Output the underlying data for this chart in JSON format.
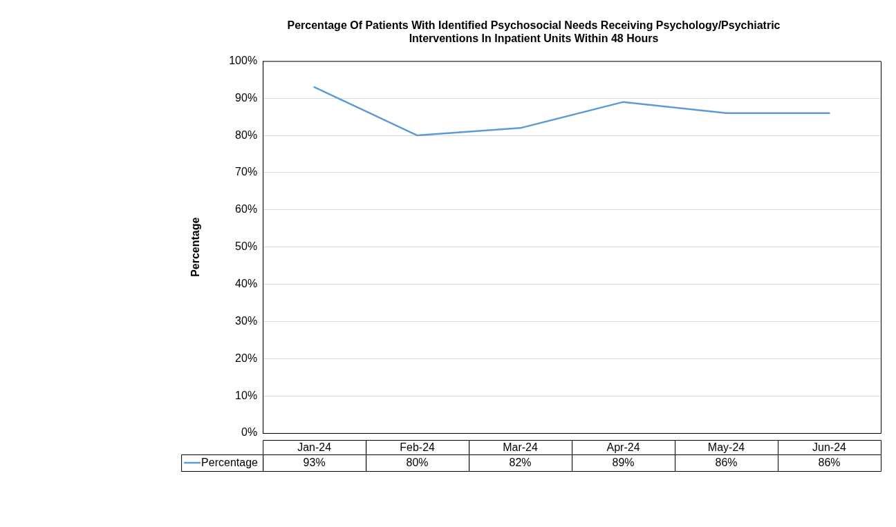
{
  "chart_data": {
    "type": "line",
    "title": "Percentage Of Patients With Identified Psychosocial Needs Receiving Psychology/Psychiatric Interventions In Inpatient Units Within 48 Hours",
    "ylabel": "Percentage",
    "categories": [
      "Jan-24",
      "Feb-24",
      "Mar-24",
      "Apr-24",
      "May-24",
      "Jun-24"
    ],
    "series": [
      {
        "name": "Percentage",
        "color": "#5b9bd5",
        "values": [
          93,
          80,
          82,
          89,
          86,
          86
        ],
        "value_labels": [
          "93%",
          "80%",
          "82%",
          "89%",
          "86%",
          "86%"
        ]
      }
    ],
    "ylim": [
      0,
      100
    ],
    "yticks": [
      {
        "value": 0,
        "label": "0%"
      },
      {
        "value": 10,
        "label": "10%"
      },
      {
        "value": 20,
        "label": "20%"
      },
      {
        "value": 30,
        "label": "30%"
      },
      {
        "value": 40,
        "label": "40%"
      },
      {
        "value": 50,
        "label": "50%"
      },
      {
        "value": 60,
        "label": "60%"
      },
      {
        "value": 70,
        "label": "70%"
      },
      {
        "value": 80,
        "label": "80%"
      },
      {
        "value": 90,
        "label": "90%"
      },
      {
        "value": 100,
        "label": "100%"
      }
    ],
    "grid": "y",
    "legend": "bottom",
    "marker": "none",
    "line_style": "solid"
  }
}
